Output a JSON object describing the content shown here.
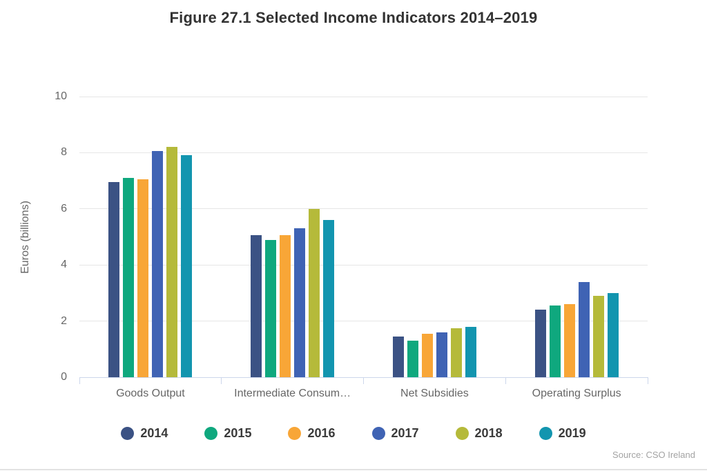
{
  "page": {
    "title": "Figure 27.1 Selected Income Indicators 2014–2019",
    "source": "Source: CSO Ireland"
  },
  "chart_data": {
    "type": "bar",
    "title": "Figure 27.1 Selected Income Indicators 2014–2019",
    "xlabel": "",
    "ylabel": "Euros (billions)",
    "ylim": [
      0,
      10
    ],
    "yticks": [
      0,
      2,
      4,
      6,
      8,
      10
    ],
    "grid": true,
    "legend_position": "bottom",
    "categories": [
      "Goods Output",
      "Intermediate Consum…",
      "Net Subsidies",
      "Operating Surplus"
    ],
    "series": [
      {
        "name": "2014",
        "color": "#3b5284",
        "values": [
          6.95,
          5.05,
          1.45,
          2.4
        ]
      },
      {
        "name": "2015",
        "color": "#0fa87e",
        "values": [
          7.1,
          4.9,
          1.3,
          2.55
        ]
      },
      {
        "name": "2016",
        "color": "#f8a637",
        "values": [
          7.05,
          5.05,
          1.55,
          2.6
        ]
      },
      {
        "name": "2017",
        "color": "#3f63b4",
        "values": [
          8.05,
          5.3,
          1.6,
          3.4
        ]
      },
      {
        "name": "2018",
        "color": "#b5ba3a",
        "values": [
          8.2,
          6.0,
          1.75,
          2.9
        ]
      },
      {
        "name": "2019",
        "color": "#1295af",
        "values": [
          7.9,
          5.6,
          1.8,
          3.0
        ]
      }
    ]
  }
}
